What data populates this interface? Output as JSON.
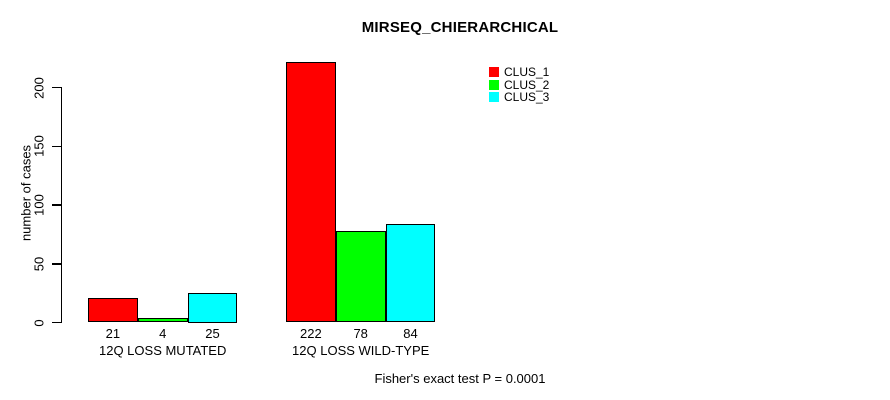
{
  "chart_data": {
    "type": "bar",
    "title": "MIRSEQ_CHIERARCHICAL",
    "ylabel": "number of cases",
    "xlabel": "",
    "categories": [
      "12Q LOSS MUTATED",
      "12Q LOSS WILD-TYPE"
    ],
    "series": [
      {
        "name": "CLUS_1",
        "color": "#ff0000",
        "values": [
          21,
          222
        ]
      },
      {
        "name": "CLUS_2",
        "color": "#00ff00",
        "values": [
          4,
          78
        ]
      },
      {
        "name": "CLUS_3",
        "color": "#00ffff",
        "values": [
          25,
          84
        ]
      }
    ],
    "yticks": [
      0,
      50,
      100,
      150,
      200
    ],
    "ylim": [
      0,
      230
    ],
    "grid": false,
    "legend_position": "top-right-inside",
    "annotation": "Fisher's exact test P = 0.0001",
    "colors": {
      "axis": "#000000",
      "text": "#000000",
      "background": "#ffffff"
    }
  }
}
